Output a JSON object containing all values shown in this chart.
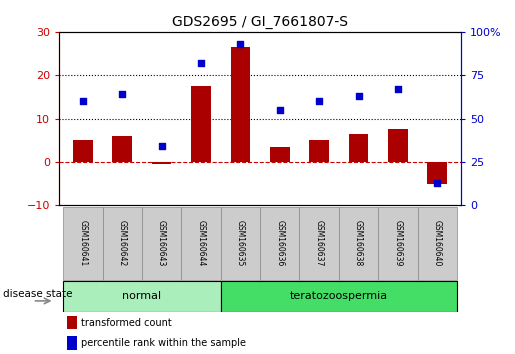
{
  "title": "GDS2695 / GI_7661807-S",
  "samples": [
    "GSM160641",
    "GSM160642",
    "GSM160643",
    "GSM160644",
    "GSM160635",
    "GSM160636",
    "GSM160637",
    "GSM160638",
    "GSM160639",
    "GSM160640"
  ],
  "transformed_count": [
    5.0,
    6.0,
    -0.5,
    17.5,
    26.5,
    3.5,
    5.0,
    6.5,
    7.5,
    -5.0
  ],
  "percentile_rank_right": [
    60,
    64,
    34,
    82,
    93,
    55,
    60,
    63,
    67,
    13
  ],
  "bar_color": "#aa0000",
  "dot_color": "#0000cc",
  "ylim_left": [
    -10,
    30
  ],
  "ylim_right": [
    0,
    100
  ],
  "yticks_left": [
    -10,
    0,
    10,
    20,
    30
  ],
  "yticks_right": [
    0,
    25,
    50,
    75,
    100
  ],
  "groups": [
    {
      "label": "normal",
      "indices": [
        0,
        1,
        2,
        3
      ],
      "color": "#aaeebb"
    },
    {
      "label": "teratozoospermia",
      "indices": [
        4,
        5,
        6,
        7,
        8,
        9
      ],
      "color": "#44dd66"
    }
  ],
  "disease_state_label": "disease state",
  "legend_items": [
    {
      "label": "transformed count",
      "color": "#aa0000"
    },
    {
      "label": "percentile rank within the sample",
      "color": "#0000cc"
    }
  ],
  "bar_width": 0.5,
  "background_color": "#ffffff",
  "left_tick_color": "#cc0000",
  "right_tick_color": "#0000cc",
  "sample_box_color": "#cccccc",
  "sample_box_edge": "#888888"
}
